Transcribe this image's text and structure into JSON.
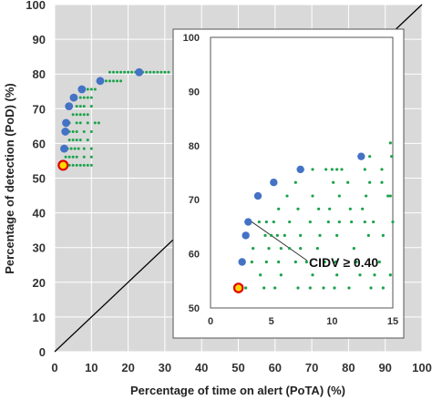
{
  "chart_data": [
    {
      "type": "scatter",
      "title": "",
      "xlabel": "Percentage of time on alert (PoTA) (%)",
      "ylabel": "Percentage of detection (PoD) (%)",
      "xlim": [
        0,
        100
      ],
      "ylim": [
        0,
        100
      ],
      "xticks": [
        "0",
        "10",
        "20",
        "30",
        "40",
        "50",
        "60",
        "70",
        "80",
        "90",
        "100"
      ],
      "yticks": [
        "0",
        "10",
        "20",
        "30",
        "40",
        "50",
        "60",
        "70",
        "80",
        "90",
        "100"
      ],
      "grid": true,
      "background": "#d9d9d9",
      "diagonal_line": {
        "x": [
          0,
          100
        ],
        "y": [
          0,
          100
        ],
        "color": "#000000"
      },
      "series": [
        {
          "color": "#1aa34a",
          "marker": "small-dot",
          "points": [
            [
              3,
              53.7
            ],
            [
              4,
              53.7
            ],
            [
              5,
              53.7
            ],
            [
              6,
              53.7
            ],
            [
              7,
              53.7
            ],
            [
              8,
              53.7
            ],
            [
              9,
              53.7
            ],
            [
              10,
              53.7
            ],
            [
              3,
              56.1
            ],
            [
              4,
              56.1
            ],
            [
              5,
              56.1
            ],
            [
              6,
              56.1
            ],
            [
              8,
              56.1
            ],
            [
              10,
              56.1
            ],
            [
              3.5,
              58.5
            ],
            [
              4.5,
              58.5
            ],
            [
              5.5,
              58.5
            ],
            [
              6.5,
              58.5
            ],
            [
              8,
              58.5
            ],
            [
              10,
              58.5
            ],
            [
              4,
              61
            ],
            [
              5,
              61
            ],
            [
              6,
              61
            ],
            [
              7,
              61
            ],
            [
              9,
              61
            ],
            [
              4,
              63.4
            ],
            [
              5,
              63.4
            ],
            [
              6,
              63.4
            ],
            [
              8,
              63.4
            ],
            [
              10,
              63.4
            ],
            [
              4,
              65.9
            ],
            [
              6,
              65.9
            ],
            [
              7,
              65.9
            ],
            [
              9,
              65.9
            ],
            [
              11,
              65.9
            ],
            [
              12,
              65.9
            ],
            [
              5,
              68.3
            ],
            [
              6,
              68.3
            ],
            [
              7,
              68.3
            ],
            [
              8,
              68.3
            ],
            [
              9,
              68.3
            ],
            [
              6,
              70.7
            ],
            [
              7,
              70.7
            ],
            [
              8,
              70.7
            ],
            [
              10,
              70.7
            ],
            [
              7,
              73.2
            ],
            [
              8,
              73.2
            ],
            [
              9,
              73.2
            ],
            [
              10,
              73.2
            ],
            [
              8,
              75.6
            ],
            [
              9,
              75.6
            ],
            [
              10,
              75.6
            ],
            [
              11,
              75.6
            ],
            [
              13,
              78
            ],
            [
              14,
              78
            ],
            [
              15,
              78
            ],
            [
              16,
              78
            ],
            [
              17,
              78
            ],
            [
              18,
              78
            ],
            [
              15,
              80.5
            ],
            [
              16,
              80.5
            ],
            [
              17,
              80.5
            ],
            [
              18,
              80.5
            ],
            [
              19,
              80.5
            ],
            [
              20,
              80.5
            ],
            [
              21,
              80.5
            ],
            [
              22,
              80.5
            ],
            [
              24,
              80.5
            ],
            [
              25,
              80.5
            ],
            [
              26,
              80.5
            ],
            [
              27,
              80.5
            ],
            [
              28,
              80.5
            ],
            [
              29,
              80.5
            ],
            [
              30,
              80.5
            ],
            [
              31,
              80.5
            ]
          ]
        },
        {
          "color": "#4472c4",
          "marker": "large-dot",
          "points": [
            [
              2.6,
              58.5
            ],
            [
              2.9,
              63.4
            ],
            [
              3.1,
              65.9
            ],
            [
              3.9,
              70.7
            ],
            [
              5.2,
              73.2
            ],
            [
              7.4,
              75.6
            ],
            [
              12.4,
              78
            ],
            [
              23,
              80.5
            ]
          ]
        },
        {
          "color": "#ffd700",
          "edge_color": "#e00000",
          "marker": "highlight",
          "points": [
            [
              2.3,
              53.7
            ]
          ]
        }
      ]
    },
    {
      "type": "scatter",
      "inset": true,
      "xlim": [
        0,
        15
      ],
      "ylim": [
        50,
        100
      ],
      "xticks": [
        "0",
        "5",
        "10",
        "15"
      ],
      "yticks": [
        "50",
        "60",
        "70",
        "80",
        "90",
        "100"
      ],
      "grid": false,
      "background": "#ffffff",
      "annotation": {
        "text": "CIDV ≥ 0.40",
        "points_to": [
          3.1,
          65.9
        ]
      },
      "series": [
        {
          "color": "#1aa34a",
          "marker": "small-dot",
          "points": [
            [
              2.9,
              53.7
            ],
            [
              4.4,
              53.7
            ],
            [
              5.3,
              53.7
            ],
            [
              7.2,
              53.7
            ],
            [
              8.2,
              53.7
            ],
            [
              9.3,
              53.7
            ],
            [
              10.2,
              53.7
            ],
            [
              11.4,
              53.7
            ],
            [
              13.2,
              53.7
            ],
            [
              14.2,
              53.7
            ],
            [
              4.1,
              56.1
            ],
            [
              5.8,
              56.1
            ],
            [
              8.4,
              56.1
            ],
            [
              10.4,
              56.1
            ],
            [
              12.3,
              56.1
            ],
            [
              13.5,
              56.1
            ],
            [
              14.8,
              56.1
            ],
            [
              3.4,
              58.5
            ],
            [
              4.6,
              58.5
            ],
            [
              5.6,
              58.5
            ],
            [
              7.0,
              58.5
            ],
            [
              7.9,
              58.5
            ],
            [
              9.4,
              58.5
            ],
            [
              10.3,
              58.5
            ],
            [
              12.0,
              58.5
            ],
            [
              13.9,
              58.5
            ],
            [
              3.5,
              61
            ],
            [
              4.8,
              61
            ],
            [
              5.8,
              61
            ],
            [
              6.5,
              61
            ],
            [
              7.4,
              61
            ],
            [
              8.8,
              61
            ],
            [
              11.8,
              61
            ],
            [
              4.5,
              63.4
            ],
            [
              5.0,
              63.4
            ],
            [
              5.5,
              63.4
            ],
            [
              6.1,
              63.4
            ],
            [
              7.4,
              63.4
            ],
            [
              9.0,
              63.4
            ],
            [
              10.4,
              63.4
            ],
            [
              13.0,
              63.4
            ],
            [
              14.2,
              63.4
            ],
            [
              4.0,
              65.9
            ],
            [
              4.6,
              65.9
            ],
            [
              5.2,
              65.9
            ],
            [
              6.5,
              65.9
            ],
            [
              8.2,
              65.9
            ],
            [
              9.7,
              65.9
            ],
            [
              10.6,
              65.9
            ],
            [
              11.6,
              65.9
            ],
            [
              12.7,
              65.9
            ],
            [
              13.4,
              65.9
            ],
            [
              15.0,
              65.9
            ],
            [
              5.6,
              68.3
            ],
            [
              7.2,
              68.3
            ],
            [
              8.9,
              68.3
            ],
            [
              9.8,
              68.3
            ],
            [
              11.5,
              68.3
            ],
            [
              12.5,
              68.3
            ],
            [
              6.3,
              70.7
            ],
            [
              8.4,
              70.7
            ],
            [
              10.6,
              70.7
            ],
            [
              12.8,
              70.7
            ],
            [
              14.6,
              70.7
            ],
            [
              14.8,
              70.7
            ],
            [
              7.0,
              73.2
            ],
            [
              10.1,
              73.2
            ],
            [
              11.3,
              73.2
            ],
            [
              13.1,
              73.2
            ],
            [
              14.1,
              73.2
            ],
            [
              8.4,
              75.6
            ],
            [
              9.5,
              75.6
            ],
            [
              10.0,
              75.6
            ],
            [
              10.4,
              75.6
            ],
            [
              10.8,
              75.6
            ],
            [
              12.7,
              75.6
            ],
            [
              14.1,
              75.6
            ],
            [
              13.1,
              78
            ],
            [
              14.9,
              78
            ],
            [
              14.8,
              80.5
            ]
          ]
        },
        {
          "color": "#4472c4",
          "marker": "large-dot",
          "points": [
            [
              2.6,
              58.5
            ],
            [
              2.9,
              63.4
            ],
            [
              3.1,
              65.9
            ],
            [
              3.9,
              70.7
            ],
            [
              5.2,
              73.2
            ],
            [
              7.4,
              75.6
            ],
            [
              12.4,
              78
            ]
          ]
        },
        {
          "color": "#ffd700",
          "edge_color": "#e00000",
          "marker": "highlight",
          "points": [
            [
              2.3,
              53.7
            ]
          ]
        }
      ]
    }
  ]
}
